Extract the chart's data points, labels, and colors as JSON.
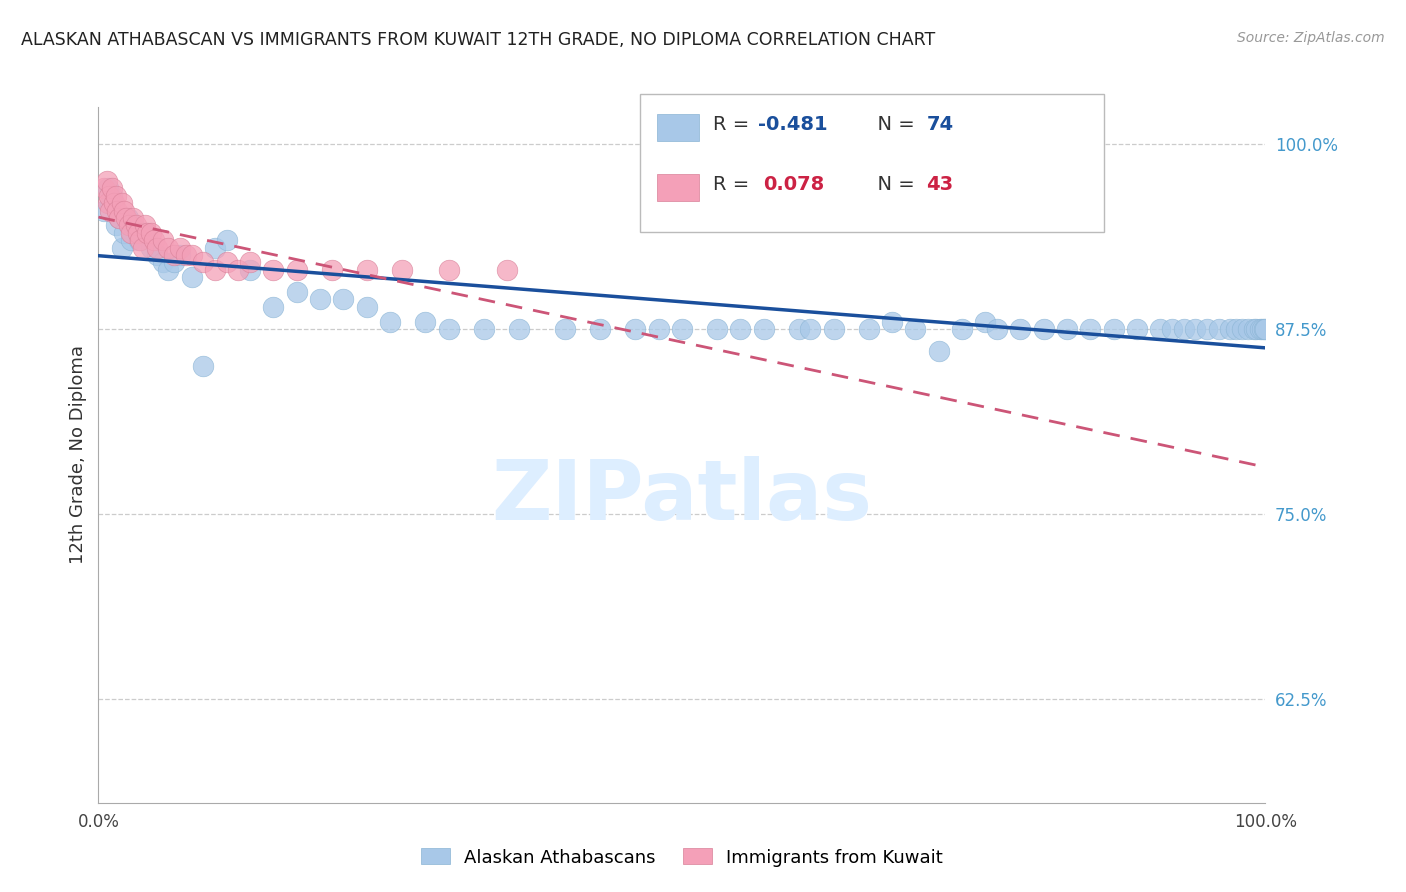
{
  "title": "ALASKAN ATHABASCAN VS IMMIGRANTS FROM KUWAIT 12TH GRADE, NO DIPLOMA CORRELATION CHART",
  "source": "Source: ZipAtlas.com",
  "ylabel": "12th Grade, No Diploma",
  "legend_blue_r": "-0.481",
  "legend_blue_n": "74",
  "legend_pink_r": "0.078",
  "legend_pink_n": "43",
  "blue_color": "#a8c8e8",
  "blue_edge_color": "#8ab4d4",
  "blue_line_color": "#1a4f9c",
  "pink_color": "#f4a0b8",
  "pink_edge_color": "#d88098",
  "pink_line_color": "#cc5577",
  "grid_color": "#cccccc",
  "ytick_color": "#4499cc",
  "watermark_color": "#ddeeff",
  "blue_x": [
    0.005,
    0.008,
    0.01,
    0.012,
    0.015,
    0.018,
    0.02,
    0.022,
    0.025,
    0.028,
    0.03,
    0.035,
    0.04,
    0.045,
    0.05,
    0.055,
    0.06,
    0.065,
    0.07,
    0.08,
    0.09,
    0.1,
    0.11,
    0.13,
    0.15,
    0.17,
    0.19,
    0.21,
    0.23,
    0.25,
    0.28,
    0.3,
    0.33,
    0.36,
    0.4,
    0.43,
    0.46,
    0.5,
    0.53,
    0.57,
    0.6,
    0.63,
    0.66,
    0.68,
    0.7,
    0.72,
    0.74,
    0.76,
    0.79,
    0.81,
    0.83,
    0.85,
    0.87,
    0.89,
    0.91,
    0.92,
    0.93,
    0.94,
    0.95,
    0.96,
    0.97,
    0.975,
    0.98,
    0.985,
    0.99,
    0.992,
    0.995,
    0.997,
    0.999,
    1.0,
    0.48,
    0.55,
    0.61,
    0.77
  ],
  "blue_y": [
    0.955,
    0.97,
    0.96,
    0.965,
    0.945,
    0.95,
    0.93,
    0.94,
    0.95,
    0.935,
    0.945,
    0.935,
    0.94,
    0.93,
    0.925,
    0.92,
    0.915,
    0.92,
    0.925,
    0.91,
    0.85,
    0.93,
    0.935,
    0.915,
    0.89,
    0.9,
    0.895,
    0.895,
    0.89,
    0.88,
    0.88,
    0.875,
    0.875,
    0.875,
    0.875,
    0.875,
    0.875,
    0.875,
    0.875,
    0.875,
    0.875,
    0.875,
    0.875,
    0.88,
    0.875,
    0.86,
    0.875,
    0.88,
    0.875,
    0.875,
    0.875,
    0.875,
    0.875,
    0.875,
    0.875,
    0.875,
    0.875,
    0.875,
    0.875,
    0.875,
    0.875,
    0.875,
    0.875,
    0.875,
    0.875,
    0.875,
    0.875,
    0.875,
    0.875,
    0.875,
    0.875,
    0.875,
    0.875,
    0.875
  ],
  "pink_x": [
    0.005,
    0.007,
    0.008,
    0.009,
    0.01,
    0.012,
    0.013,
    0.015,
    0.016,
    0.018,
    0.02,
    0.022,
    0.024,
    0.026,
    0.028,
    0.03,
    0.032,
    0.034,
    0.036,
    0.038,
    0.04,
    0.042,
    0.045,
    0.048,
    0.05,
    0.055,
    0.06,
    0.065,
    0.07,
    0.075,
    0.08,
    0.09,
    0.1,
    0.11,
    0.12,
    0.13,
    0.15,
    0.17,
    0.2,
    0.23,
    0.26,
    0.3,
    0.35
  ],
  "pink_y": [
    0.97,
    0.975,
    0.96,
    0.965,
    0.955,
    0.97,
    0.96,
    0.965,
    0.955,
    0.95,
    0.96,
    0.955,
    0.95,
    0.945,
    0.94,
    0.95,
    0.945,
    0.94,
    0.935,
    0.93,
    0.945,
    0.94,
    0.94,
    0.935,
    0.93,
    0.935,
    0.93,
    0.925,
    0.93,
    0.925,
    0.925,
    0.92,
    0.915,
    0.92,
    0.915,
    0.92,
    0.915,
    0.915,
    0.915,
    0.915,
    0.915,
    0.915,
    0.915
  ],
  "xlim": [
    0.0,
    1.0
  ],
  "ylim": [
    0.555,
    1.025
  ],
  "yticks": [
    0.625,
    0.75,
    0.875,
    1.0
  ],
  "ytick_labels": [
    "62.5%",
    "75.0%",
    "87.5%",
    "100.0%"
  ],
  "xticks": [
    0.0,
    0.1,
    0.2,
    0.3,
    0.4,
    0.5,
    0.6,
    0.7,
    0.8,
    0.9,
    1.0
  ],
  "xtick_labels_show": [
    "0.0%",
    "",
    "",
    "",
    "",
    "",
    "",
    "",
    "",
    "",
    "100.0%"
  ]
}
